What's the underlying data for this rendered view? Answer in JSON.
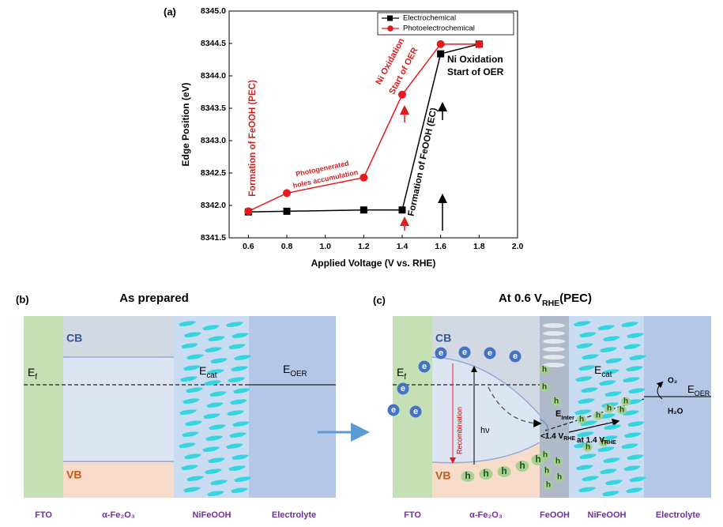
{
  "chart_data": {
    "type": "line",
    "panel_label": "(a)",
    "xlabel": "Applied Voltage (V vs. RHE)",
    "ylabel": "Edge Position (eV)",
    "x": [
      0.6,
      0.8,
      1.2,
      1.4,
      1.6,
      1.8
    ],
    "series": [
      {
        "name": "Electrochemical",
        "color": "#000000",
        "marker": "square",
        "values": [
          8341.9,
          8341.91,
          8341.93,
          8341.93,
          8344.34,
          8344.49
        ]
      },
      {
        "name": "Photoelectrochemical",
        "color": "#e41a1c",
        "marker": "circle",
        "values": [
          8341.91,
          8342.19,
          8342.43,
          8343.71,
          8344.49,
          8344.49
        ]
      }
    ],
    "xlim": [
      0.5,
      2.0
    ],
    "xticks": [
      0.6,
      0.8,
      {
        "value": 1,
        "label": "1.0"
      },
      1.2,
      1.4,
      1.6,
      1.8,
      {
        "value": 2,
        "label": "2.0"
      }
    ],
    "ylim": [
      8341.5,
      8345.0
    ],
    "yticks": [
      8341.5,
      {
        "value": 8342,
        "label": "8342.0"
      },
      8342.5,
      {
        "value": 8343,
        "label": "8343.0"
      },
      8343.5,
      {
        "value": 8344,
        "label": "8344.0"
      },
      8344.5,
      {
        "value": 8345,
        "label": "8345.0"
      }
    ],
    "legend": "upper right",
    "annotations": [
      {
        "text": "Formation of FeOOH (PEC)",
        "color": "#d62020"
      },
      {
        "text": "Photogenerated",
        "color": "#d62020"
      },
      {
        "text": "holes accumulation",
        "color": "#d62020"
      },
      {
        "text": "Ni Oxidation",
        "color": "#d62020"
      },
      {
        "text": "Start of OER",
        "color": "#d62020"
      },
      {
        "text": "Ni Oxidation",
        "color": "#000000"
      },
      {
        "text": "Start of OER",
        "color": "#000000"
      },
      {
        "text": "Formation of FeOOH (EC)",
        "color": "#000000"
      }
    ]
  },
  "panel_b": {
    "label": "(b)",
    "title": "As prepared",
    "cb": "CB",
    "vb": "VB",
    "ef": {
      "main": "E",
      "sub": "f"
    },
    "ecat": {
      "main": "E",
      "sub": "cat"
    },
    "eoer": {
      "main": "E",
      "sub": "OER"
    },
    "layers": [
      "FTO",
      "α-Fe₂O₃",
      "NiFeOOH",
      "Electrolyte"
    ]
  },
  "panel_c": {
    "label": "(c)",
    "title": {
      "main": "At 0.6 V",
      "sub": "RHE",
      "post": "(PEC)"
    },
    "cb": "CB",
    "vb": "VB",
    "ef": {
      "main": "E",
      "sub": "f"
    },
    "electron": "e",
    "hole": "h",
    "recombination": "Recombination",
    "hv": "hν",
    "einter": {
      "main": "E",
      "sub": "Inter"
    },
    "ecat": {
      "main": "E",
      "sub": "cat"
    },
    "below": {
      "main": "<1.4 V",
      "sub": "RHE"
    },
    "at": {
      "main": "at 1.4 V",
      "sub": "RHE"
    },
    "o2": "O₂",
    "h2o": "H₂O",
    "eoer": {
      "main": "E",
      "sub": "OER"
    },
    "layers": [
      "FTO",
      "α-Fe₂O₃",
      "FeOOH",
      "NiFeOOH",
      "Electrolyte"
    ]
  }
}
